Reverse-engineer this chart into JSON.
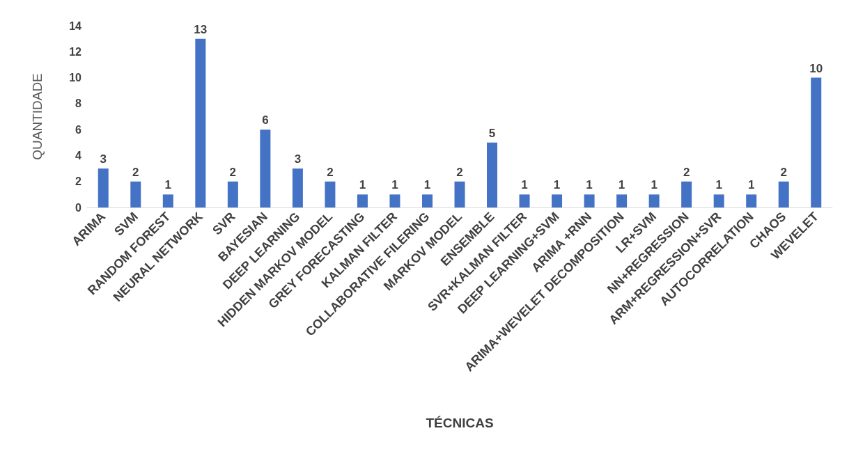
{
  "chart_data": {
    "type": "bar",
    "categories": [
      "ARIMA",
      "SVM",
      "RANDOM FOREST",
      "NEURAL NETWORK",
      "SVR",
      "BAYESIAN",
      "DEEP LEARNING",
      "HIDDEN MARKOV MODEL",
      "GREY FORECASTING",
      "KALMAN FILTER",
      "COLLABORATIVE FILERING",
      "MARKOV MODEL",
      "ENSEMBLE",
      "SVR+KALMAN FILTER",
      "DEEP LEARNING+SVM",
      "ARIMA +RNN",
      "ARIMA+WEVELET DECOMPOSITION",
      "LR+SVM",
      "NN+REGRESSION",
      "ARM+REGRESSION+SVR",
      "AUTOCORRELATION",
      "CHAOS",
      "WEVELET"
    ],
    "values": [
      3,
      2,
      1,
      13,
      2,
      6,
      3,
      2,
      1,
      1,
      1,
      2,
      5,
      1,
      1,
      1,
      1,
      1,
      2,
      1,
      1,
      2,
      10
    ],
    "color": "#4472c4",
    "xlabel": "TÉCNICAS",
    "ylabel": "QUANTIDADE",
    "ylim": [
      0,
      14
    ],
    "yticks": [
      0,
      2,
      4,
      6,
      8,
      10,
      12,
      14
    ],
    "data_labels": true,
    "grid": false
  }
}
